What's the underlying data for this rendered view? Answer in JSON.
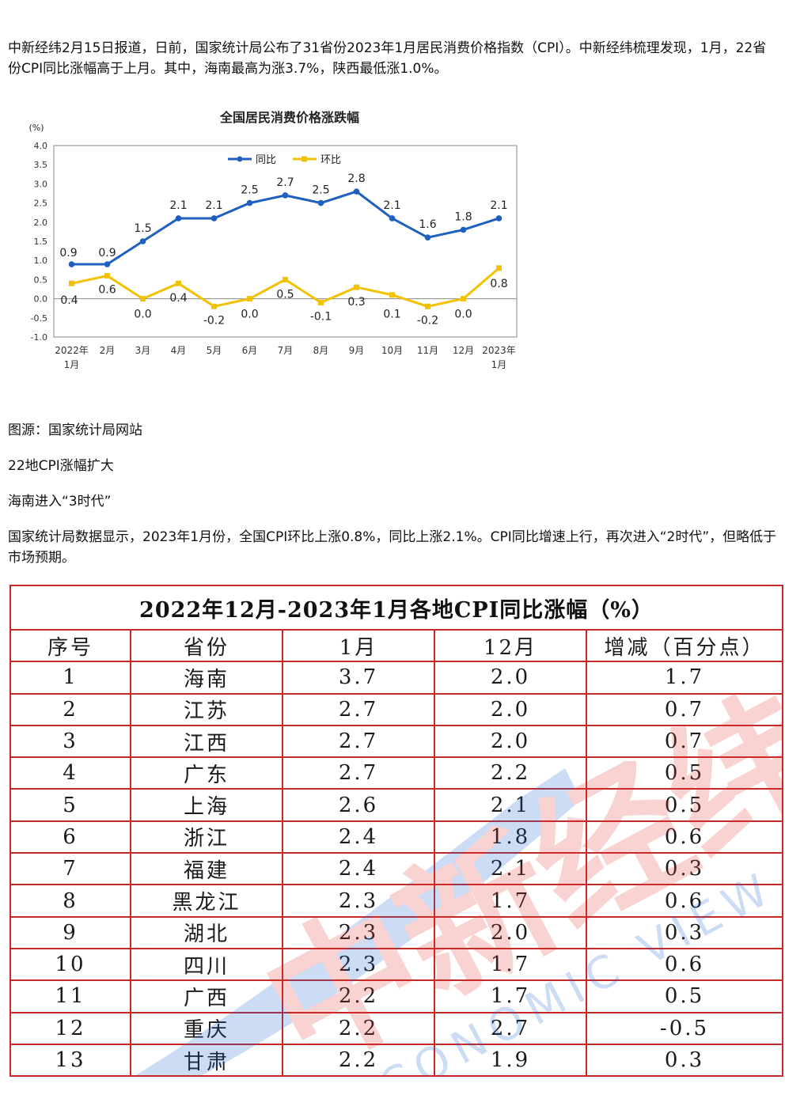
{
  "article": {
    "intro": "中新经纬2月15日报道，日前，国家统计局公布了31省份2023年1月居民消费价格指数（CPI）。中新经纬梳理发现，1月，22省份CPI同比涨幅高于上月。其中，海南最高为涨3.7%，陕西最低涨1.0%。",
    "source": "图源：国家统计局网站",
    "heading1": "22地CPI涨幅扩大",
    "heading2": "海南进入“3时代”",
    "body": "国家统计局数据显示，2023年1月份，全国CPI环比上涨0.8%，同比上涨2.1%。CPI同比增速上行，再次进入“2时代”，但略低于市场预期。"
  },
  "chart_data": {
    "type": "line",
    "title": "全国居民消费价格涨跌幅",
    "ylabel": "(%)",
    "ylim": [
      -1.0,
      4.0
    ],
    "yticks": [
      "4.0",
      "3.5",
      "3.0",
      "2.5",
      "2.0",
      "1.5",
      "1.0",
      "0.5",
      "0.0",
      "-0.5",
      "-1.0"
    ],
    "categories": [
      "2022年\n1月",
      "2月",
      "3月",
      "4月",
      "5月",
      "6月",
      "7月",
      "8月",
      "9月",
      "10月",
      "11月",
      "12月",
      "2023年\n1月"
    ],
    "series": [
      {
        "name": "同比",
        "color": "#1f5fbf",
        "values": [
          0.9,
          0.9,
          1.5,
          2.1,
          2.1,
          2.5,
          2.7,
          2.5,
          2.8,
          2.1,
          1.6,
          1.8,
          2.1
        ]
      },
      {
        "name": "环比",
        "color": "#f2c200",
        "values": [
          0.4,
          0.6,
          0.0,
          0.4,
          -0.2,
          0.0,
          0.5,
          -0.1,
          0.3,
          0.1,
          -0.2,
          0.0,
          0.8
        ]
      }
    ],
    "data_labels": {
      "yoy": [
        "0.9",
        "0.9",
        "1.5",
        "2.1",
        "2.1",
        "2.5",
        "2.7",
        "2.5",
        "2.8",
        "2.1",
        "1.6",
        "1.8",
        "2.1"
      ],
      "mom": [
        "0.4",
        "0.6",
        "0.0",
        "0.4",
        "-0.2",
        "0.0",
        "0.5",
        "-0.1",
        "0.3",
        "0.1",
        "-0.2",
        "0.0",
        "0.8"
      ]
    },
    "legend": "top-left",
    "grid": false
  },
  "table": {
    "title": "2022年12月-2023年1月各地CPI同比涨幅（%）",
    "headers": [
      "序号",
      "省份",
      "1月",
      "12月",
      "增减（百分点）"
    ],
    "rows": [
      [
        "1",
        "海南",
        "3.7",
        "2.0",
        "1.7"
      ],
      [
        "2",
        "江苏",
        "2.7",
        "2.0",
        "0.7"
      ],
      [
        "3",
        "江西",
        "2.7",
        "2.0",
        "0.7"
      ],
      [
        "4",
        "广东",
        "2.7",
        "2.2",
        "0.5"
      ],
      [
        "5",
        "上海",
        "2.6",
        "2.1",
        "0.5"
      ],
      [
        "6",
        "浙江",
        "2.4",
        "1.8",
        "0.6"
      ],
      [
        "7",
        "福建",
        "2.4",
        "2.1",
        "0.3"
      ],
      [
        "8",
        "黑龙江",
        "2.3",
        "1.7",
        "0.6"
      ],
      [
        "9",
        "湖北",
        "2.3",
        "2.0",
        "0.3"
      ],
      [
        "10",
        "四川",
        "2.3",
        "1.7",
        "0.6"
      ],
      [
        "11",
        "广西",
        "2.2",
        "1.7",
        "0.5"
      ],
      [
        "12",
        "重庆",
        "2.2",
        "2.7",
        "-0.5"
      ],
      [
        "13",
        "甘肃",
        "2.2",
        "1.9",
        "0.3"
      ]
    ]
  },
  "watermark": {
    "text_cn": "中新经纬",
    "text_en": "ECONOMIC VIEW",
    "color_red": "#e53935",
    "color_blue": "#1e63d6"
  }
}
